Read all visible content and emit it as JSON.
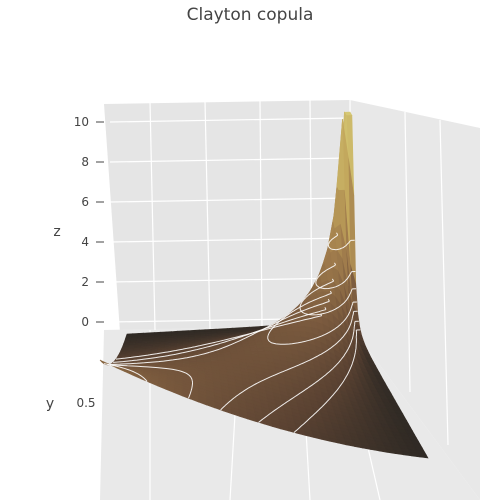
{
  "chart_data": {
    "type": "surface",
    "title": "Clayton copula",
    "zlabel": "z",
    "ylabel": "y",
    "xlabel": "",
    "z_ticks": [
      "0",
      "2",
      "4",
      "6",
      "8",
      "10"
    ],
    "z_tick_values": [
      0,
      2,
      4,
      6,
      8,
      10
    ],
    "y_ticks": [
      "0.5"
    ],
    "zlim": [
      0,
      10.5
    ],
    "x_range": [
      0,
      1
    ],
    "y_range": [
      0,
      1
    ],
    "surface": {
      "function": "Clayton copula density",
      "theta": 2,
      "grid_points": 41,
      "contours": true,
      "contour_color": "#ffffff",
      "colorscale": [
        "#2e2924",
        "#5a4232",
        "#7a5a3e",
        "#a07c4c",
        "#c0a35a",
        "#d6c874"
      ]
    },
    "scene_background": "#e5e5e5",
    "grid": true
  }
}
